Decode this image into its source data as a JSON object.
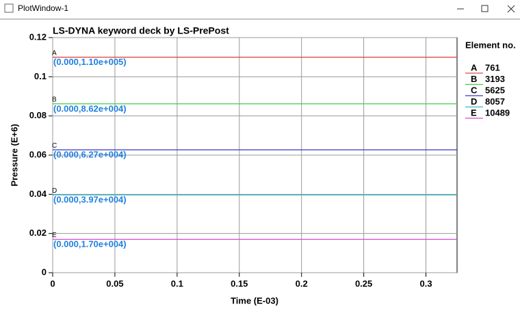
{
  "window_title": "PlotWindow-1",
  "chart_data": {
    "type": "line",
    "title": "LS-DYNA keyword deck by LS-PrePost",
    "xlabel": "Time (E-03)",
    "ylabel": "Pressure (E+6)",
    "legend_title": "Element no.",
    "legend": "right",
    "grid": true,
    "x": [
      0,
      0.325
    ],
    "xlim": [
      0,
      0.325
    ],
    "xticks": [
      0,
      0.05,
      0.1,
      0.15,
      0.2,
      0.25,
      0.3
    ],
    "ylim": [
      0,
      0.12
    ],
    "yticks": [
      0,
      0.02,
      0.04,
      0.06,
      0.08,
      0.1,
      0.12
    ],
    "series": [
      {
        "label": "A",
        "name": "761",
        "color": "#e04848",
        "values": [
          0.11,
          0.11
        ],
        "annotation": "(0.000,1.10e+005)"
      },
      {
        "label": "B",
        "name": "3193",
        "color": "#40cc40",
        "values": [
          0.0862,
          0.0862
        ],
        "annotation": "(0.000,8.62e+004)"
      },
      {
        "label": "C",
        "name": "5625",
        "color": "#3434c4",
        "values": [
          0.0627,
          0.0627
        ],
        "annotation": "(0.000,6.27e+004)"
      },
      {
        "label": "D",
        "name": "8057",
        "color": "#34b4c4",
        "values": [
          0.0397,
          0.0397
        ],
        "annotation": "(0.000,3.97e+004)"
      },
      {
        "label": "E",
        "name": "10489",
        "color": "#d048d0",
        "values": [
          0.017,
          0.017
        ],
        "annotation": "(0.000,1.70e+004)"
      }
    ]
  }
}
